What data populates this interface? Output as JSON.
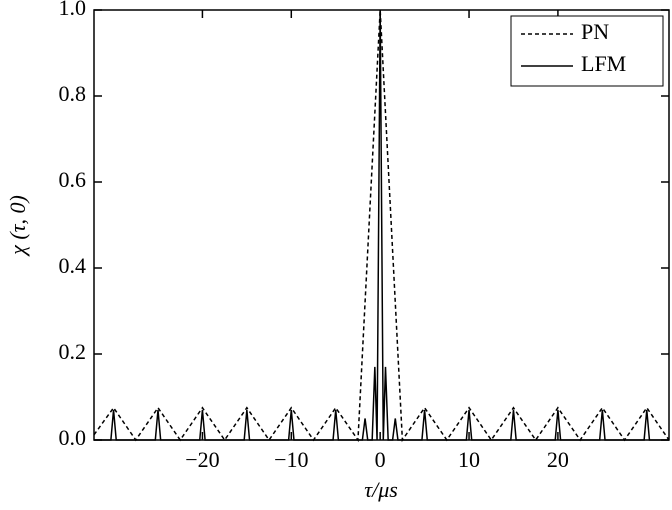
{
  "chart_data": {
    "type": "line",
    "x_label": "τ/μs",
    "y_label": "χ (τ, 0)",
    "xlim": [
      -32.2,
      32.5
    ],
    "ylim": [
      0,
      1
    ],
    "xticks": [
      {
        "value": -20,
        "label": "−20"
      },
      {
        "value": -10,
        "label": "−10"
      },
      0,
      10,
      20
    ],
    "yticks": [
      {
        "value": 0,
        "label": "0.0"
      },
      0.2,
      0.4,
      0.6,
      0.8,
      {
        "value": 1,
        "label": "1.0"
      }
    ],
    "legend": "upper right",
    "series": [
      {
        "name": "PN",
        "color": "#000000",
        "dash": "dashed",
        "x": [
          -32.2,
          -30,
          -27.5,
          -25,
          -22.5,
          -20,
          -17.5,
          -15,
          -12.5,
          -10,
          -7.5,
          -5,
          -2.5,
          0,
          2.5,
          5,
          7.5,
          10,
          12.5,
          15,
          17.5,
          20,
          22.5,
          25,
          27.5,
          30,
          32.5
        ],
        "values": [
          0.012,
          0.075,
          0,
          0.075,
          0,
          0.075,
          0,
          0.075,
          0,
          0.075,
          0,
          0.075,
          0,
          1,
          0,
          0.075,
          0,
          0.075,
          0,
          0.075,
          0,
          0.075,
          0,
          0.075,
          0,
          0.075,
          0
        ]
      },
      {
        "name": "LFM",
        "color": "#000000",
        "dash": "solid",
        "x": [
          -32.2,
          -30.3,
          -30,
          -29.7,
          -25.3,
          -25,
          -24.7,
          -20.3,
          -20,
          -19.7,
          -15.3,
          -15,
          -14.7,
          -10.3,
          -10,
          -9.7,
          -5.3,
          -5,
          -4.7,
          -2,
          -1.7,
          -1.4,
          -0.9,
          -0.6,
          -0.35,
          0,
          0.35,
          0.6,
          0.9,
          1.4,
          1.7,
          2,
          4.7,
          5,
          5.3,
          9.7,
          10,
          10.3,
          14.7,
          15,
          15.3,
          19.7,
          20,
          20.3,
          24.7,
          25,
          25.3,
          29.7,
          30,
          30.3,
          32.5
        ],
        "values": [
          0,
          0,
          0.07,
          0,
          0,
          0.07,
          0,
          0,
          0.07,
          0,
          0,
          0.07,
          0,
          0,
          0.07,
          0,
          0,
          0.07,
          0,
          0,
          0.05,
          0,
          0,
          0.17,
          0,
          1,
          0,
          0.17,
          0,
          0,
          0.05,
          0,
          0,
          0.07,
          0,
          0,
          0.07,
          0,
          0,
          0.07,
          0,
          0,
          0.07,
          0,
          0,
          0.07,
          0,
          0,
          0.07,
          0,
          0
        ]
      }
    ]
  }
}
